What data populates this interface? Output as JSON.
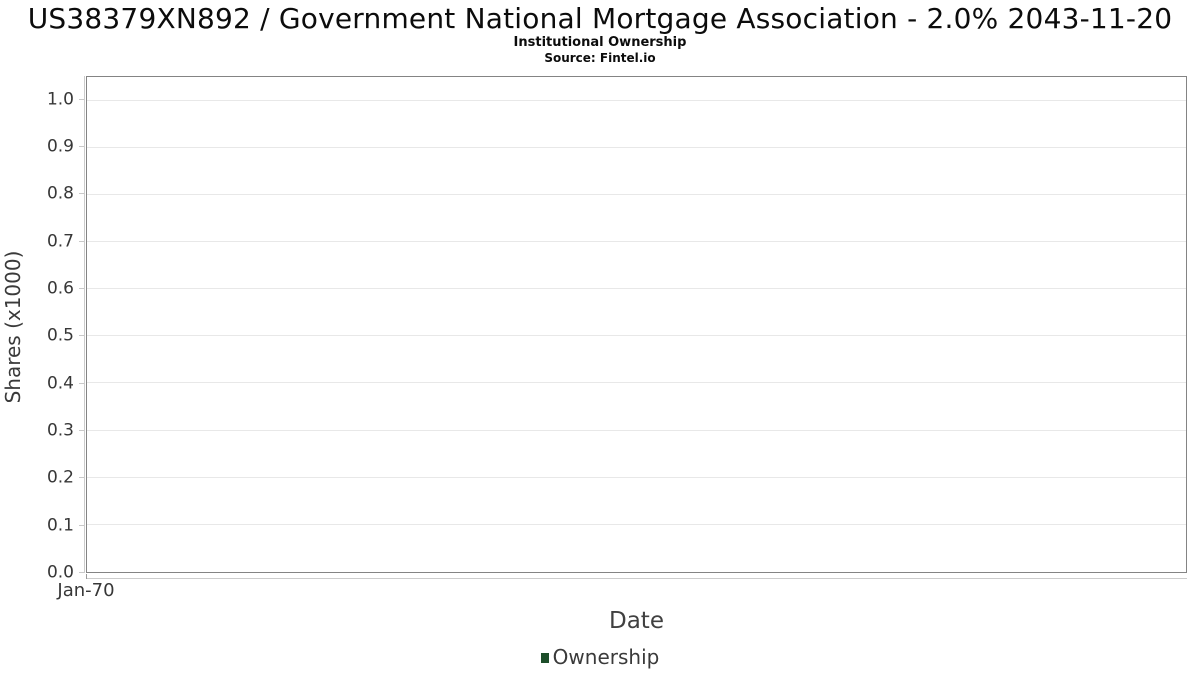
{
  "header": {
    "title": "US38379XN892 / Government National Mortgage Association - 2.0% 2043-11-20",
    "subtitle": "Institutional Ownership",
    "source": "Source: Fintel.io"
  },
  "chart_data": {
    "type": "line",
    "title": "US38379XN892 / Government National Mortgage Association - 2.0% 2043-11-20",
    "subtitle": "Institutional Ownership",
    "source": "Source: Fintel.io",
    "xlabel": "Date",
    "ylabel": "Shares (x1000)",
    "ylim": [
      0.0,
      1.05
    ],
    "grid": true,
    "y_ticks": [
      "0.0",
      "0.1",
      "0.2",
      "0.3",
      "0.4",
      "0.5",
      "0.6",
      "0.7",
      "0.8",
      "0.9",
      "1.0"
    ],
    "x_ticks": [
      {
        "label": "Jan-70",
        "position_fraction": 0
      }
    ],
    "series": [
      {
        "name": "Ownership",
        "x": [],
        "y": [],
        "color": "#1d4e2a"
      }
    ],
    "legend": [
      {
        "label": "Ownership",
        "color": "#1d4e2a"
      }
    ],
    "legend_position": "bottom-center",
    "note_empty_chart": true
  },
  "colors": {
    "plot_border": "#848484",
    "gridline": "#e8e8e8",
    "axis_line": "#cccccc",
    "tick_text": "#373737",
    "legend_green": "#1d4e2a",
    "background": "#ffffff"
  }
}
